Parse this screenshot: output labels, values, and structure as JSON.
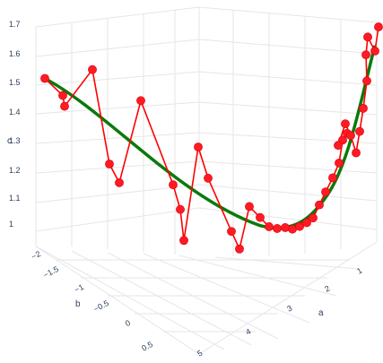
{
  "chart_data": {
    "type": "scatter3d-line",
    "title": "",
    "axes": {
      "a": {
        "label": "a",
        "ticks": [
          "1",
          "2",
          "3",
          "4",
          "5"
        ]
      },
      "b": {
        "label": "b",
        "ticks": [
          "−2",
          "−1.5",
          "−1",
          "−0.5",
          "0",
          "0.5"
        ]
      },
      "c": {
        "label": "c",
        "ticks": [
          "1",
          "1.1",
          "1.2",
          "1.3",
          "1.4",
          "1.5",
          "1.6",
          "1.7"
        ]
      }
    },
    "series": [
      {
        "mode": "lines+markers",
        "color": "#ff0000",
        "c": [
          1.52,
          1.48,
          1.44,
          1.55,
          1.23,
          1.16,
          1.45,
          1.15,
          1.05,
          0.99,
          1.27,
          1.2,
          1.03,
          1.01,
          1.06,
          1.05,
          1.04,
          1.04,
          1.04,
          1.05,
          1.05,
          1.06,
          1.07,
          1.09,
          1.11,
          1.14,
          1.16,
          1.18,
          1.2,
          1.3,
          1.38,
          1.3,
          1.25,
          1.32,
          1.35,
          1.45,
          1.61,
          1.68,
          1.62,
          1.69
        ]
      },
      {
        "mode": "lines",
        "color": "#0a7a0a",
        "c": [
          1.52,
          1.05,
          1.08,
          1.62
        ]
      }
    ]
  }
}
